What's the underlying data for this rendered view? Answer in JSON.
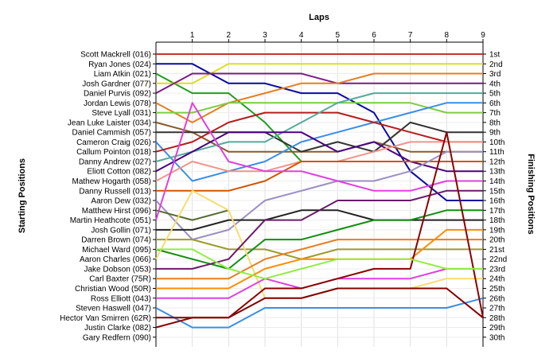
{
  "chart_data": {
    "type": "line",
    "title": "Laps",
    "ylabel_left": "Starting Positions",
    "ylabel_right": "Finishing Positions",
    "x_ticks": [
      "1",
      "2",
      "3",
      "4",
      "5",
      "6",
      "7",
      "8",
      "9"
    ],
    "x": [
      0,
      1,
      2,
      3,
      4,
      5,
      6,
      7,
      8,
      9
    ],
    "ylim": [
      1,
      30
    ],
    "y_inverted": true,
    "grid": true,
    "starting_labels": [
      "Scott Mackrell (016)",
      "Ryan Jones (024)",
      "Liam Atkin (021)",
      "Josh Gardner (077)",
      "Daniel Purvis (092)",
      "Jordan Lewis (078)",
      "Steve Lyall (031)",
      "Jean Luke Laister (034)",
      "Daniel Cammish (057)",
      "Cameron Craig (026)",
      "Callum Pointon (018)",
      "Danny Andrew (027)",
      "Eliott Cotton (082)",
      "Mathew Hogarth (058)",
      "Danny Russell (013)",
      "Aaron Dew (032)",
      "Matthew Hirst (096)",
      "Martin Heathcote (051)",
      "Josh Gollin (071)",
      "Darren Brown (074)",
      "Michael Ward (095)",
      "Aaron Charles (066)",
      "Jake Dobson (053)",
      "Carl Baxter (75R)",
      "Christian Wood (50R)",
      "Ross Elliott (043)",
      "Steven Haswell (047)",
      "Hector Van Smirren (62R)",
      "Justin Clarke (082)",
      "Gary Redfern (090)"
    ],
    "finishing_labels": [
      "1st",
      "2nd",
      "3rd",
      "4th",
      "5th",
      "6th",
      "7th",
      "8th",
      "9th",
      "10th",
      "11th",
      "12th",
      "13th",
      "14th",
      "15th",
      "16th",
      "17th",
      "18th",
      "19th",
      "20th",
      "21st",
      "22nd",
      "23rd",
      "24th",
      "25th",
      "26th",
      "27th",
      "28th",
      "29th",
      "30th"
    ],
    "finishing_positions_shown": [
      1,
      2,
      3,
      4,
      5,
      6,
      7,
      8,
      9,
      10,
      11,
      12,
      13,
      14,
      15,
      16,
      17,
      18,
      19,
      20,
      21,
      22,
      23,
      24,
      25,
      26,
      27,
      28,
      29,
      30
    ],
    "finishing_ticks_labeled": [
      1,
      2,
      3,
      4,
      5,
      6,
      7,
      8,
      9,
      10,
      11,
      12,
      13,
      14,
      15,
      16,
      17,
      18,
      19,
      20,
      21,
      22,
      23,
      24,
      25,
      26,
      27,
      28,
      29,
      30
    ],
    "series": [
      {
        "color": "#c0392b",
        "values": [
          1,
          1,
          1,
          1,
          1,
          1,
          1,
          1,
          1,
          1
        ]
      },
      {
        "color": "#0a0aa0",
        "values": [
          2,
          2,
          4,
          4,
          5,
          5,
          7,
          13,
          16,
          16
        ]
      },
      {
        "color": "#1f9e1f",
        "values": [
          3,
          5,
          5,
          8,
          12,
          null,
          null,
          null,
          null,
          null
        ]
      },
      {
        "color": "#dddd22",
        "values": [
          4,
          4,
          2,
          2,
          2,
          2,
          2,
          2,
          2,
          2
        ]
      },
      {
        "color": "#7d1a86",
        "values": [
          5,
          3,
          3,
          3,
          3,
          4,
          4,
          4,
          4,
          4
        ]
      },
      {
        "color": "#e67e22",
        "values": [
          6,
          8,
          6,
          5,
          4,
          4,
          3,
          3,
          3,
          3
        ]
      },
      {
        "color": "#7ccc44",
        "values": [
          7,
          7,
          6,
          6,
          6,
          6,
          6,
          6,
          7,
          7
        ]
      },
      {
        "color": "#8b5a2b",
        "values": [
          8,
          9,
          11,
          11,
          11,
          11,
          10,
          11,
          11,
          11
        ]
      },
      {
        "color": "#333333",
        "values": [
          9,
          9,
          9,
          9,
          11,
          10,
          11,
          8,
          9,
          9
        ]
      },
      {
        "color": "#3a8ee6",
        "values": [
          10,
          14,
          13,
          12,
          10,
          9,
          8,
          7,
          6,
          6
        ]
      },
      {
        "color": "#b71c1c",
        "values": [
          11,
          10,
          8,
          7,
          7,
          7,
          8,
          9,
          10,
          10
        ]
      },
      {
        "color": "#55aa99",
        "values": [
          12,
          11,
          10,
          10,
          8,
          6,
          5,
          5,
          5,
          5
        ]
      },
      {
        "color": "#4b0082",
        "values": [
          13,
          11,
          9,
          9,
          9,
          11,
          10,
          12,
          13,
          13
        ]
      },
      {
        "color": "#f1948a",
        "values": [
          14,
          12,
          13,
          13,
          12,
          12,
          11,
          10,
          10,
          10
        ]
      },
      {
        "color": "#d35400",
        "values": [
          15,
          15,
          15,
          14,
          12,
          12,
          12,
          12,
          12,
          12
        ]
      },
      {
        "color": "#9b8ec4",
        "values": [
          16,
          20,
          19,
          16,
          15,
          14,
          14,
          13,
          11,
          11
        ]
      },
      {
        "color": "#556b2f",
        "values": [
          17,
          18,
          17,
          null,
          null,
          null,
          null,
          null,
          null,
          null
        ]
      },
      {
        "color": "#e040e0",
        "values": [
          18,
          6,
          12,
          13,
          13,
          14,
          15,
          15,
          14,
          14
        ]
      },
      {
        "color": "#222222",
        "values": [
          19,
          19,
          18,
          18,
          17,
          17,
          18,
          18,
          18,
          18
        ]
      },
      {
        "color": "#9c9c2a",
        "values": [
          20,
          20,
          21,
          21,
          22,
          21,
          21,
          21,
          21,
          21
        ]
      },
      {
        "color": "#0f8f0f",
        "values": [
          21,
          22,
          23,
          20,
          20,
          19,
          18,
          18,
          17,
          17
        ]
      },
      {
        "color": "#f7dc6f",
        "values": [
          22,
          15,
          17,
          26,
          26,
          25,
          25,
          25,
          24,
          24
        ]
      },
      {
        "color": "#6a1b6a",
        "values": [
          23,
          23,
          22,
          18,
          18,
          16,
          16,
          16,
          15,
          15
        ]
      },
      {
        "color": "#e67e22",
        "values": [
          24,
          24,
          24,
          22,
          21,
          20,
          20,
          20,
          20,
          20
        ]
      },
      {
        "color": "#ff8c00",
        "values": [
          25,
          25,
          25,
          23,
          22,
          22,
          22,
          22,
          19,
          19
        ]
      },
      {
        "color": "#e040e0",
        "values": [
          26,
          26,
          26,
          24,
          25,
          24,
          24,
          24,
          23,
          23
        ]
      },
      {
        "color": "#3a8ee6",
        "values": [
          27,
          29,
          29,
          27,
          27,
          27,
          27,
          27,
          27,
          26
        ]
      },
      {
        "color": "#800000",
        "values": [
          28,
          28,
          28,
          26,
          26,
          25,
          25,
          25,
          25,
          28
        ]
      },
      {
        "color": "#8b0000",
        "values": [
          29,
          28,
          28,
          25,
          25,
          24,
          23,
          23,
          9,
          28
        ]
      },
      {
        "color": "#90ee40",
        "values": [
          21,
          21,
          23,
          24,
          23,
          22,
          22,
          22,
          23,
          23
        ]
      }
    ]
  }
}
